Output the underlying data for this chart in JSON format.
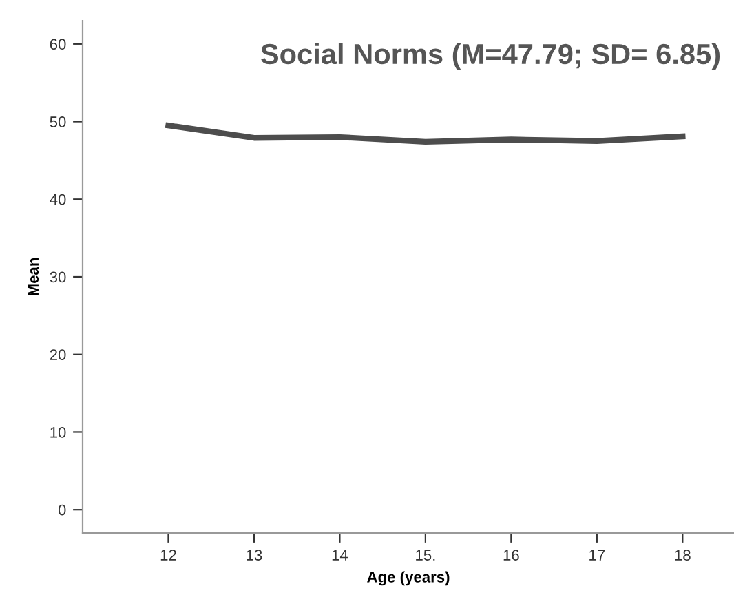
{
  "chart_data": {
    "type": "line",
    "title": "Social Norms (M=47.79; SD= 6.85)",
    "xlabel": "Age (years)",
    "ylabel": "Mean",
    "categories": [
      "12",
      "13",
      "14",
      "15.",
      "16",
      "17",
      "18"
    ],
    "series": [
      {
        "color": "#4d4d4d",
        "values": [
          49.5,
          47.9,
          48.0,
          47.4,
          47.7,
          47.5,
          48.1
        ]
      }
    ],
    "ylim": [
      -3,
      63
    ],
    "yticks": [
      0,
      10,
      20,
      30,
      40,
      50,
      60
    ],
    "grid": false,
    "legend": false,
    "marker": "none",
    "line_style": "solid"
  }
}
